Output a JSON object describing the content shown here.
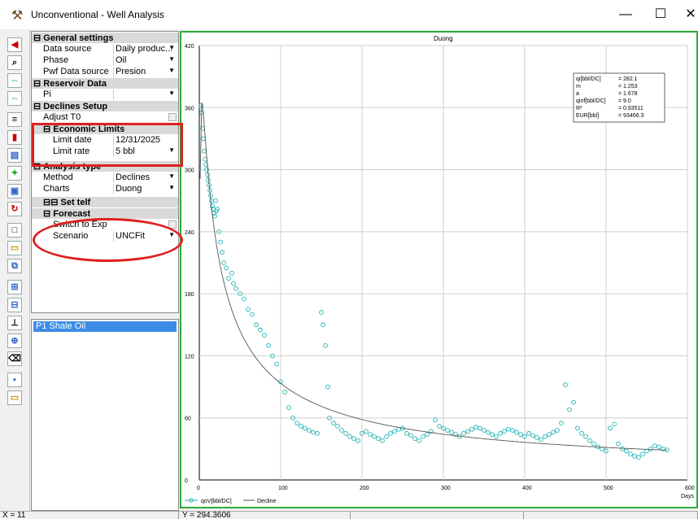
{
  "window": {
    "title": "Unconventional - Well Analysis",
    "minimize": "—",
    "maximize": "☐",
    "close": "✕"
  },
  "grid": {
    "general_header": "General settings",
    "data_source_label": "Data source",
    "data_source_value": "Daily produc...",
    "phase_label": "Phase",
    "phase_value": "Oil",
    "pwf_label": "Pwf Data source",
    "pwf_value": "Presion",
    "reservoir_header": "Reservoir Data",
    "pi_label": "Pi",
    "declines_header": "Declines Setup",
    "adjust_label": "Adjust T0",
    "economic_header": "Economic Limits",
    "limit_date_label": "Limit date",
    "limit_date_value": "12/31/2025",
    "limit_rate_label": "Limit rate",
    "limit_rate_value": "5 bbl",
    "analysis_header": "Analysis type",
    "method_label": "Method",
    "method_value": "Declines",
    "charts_label": "Charts",
    "charts_value": "Duong",
    "settelf_header": "Set telf",
    "forecast_header": "Forecast",
    "switch_label": "Switch to Exp",
    "scenario_label": "Scenario",
    "scenario_value": "UNCFit"
  },
  "wells": [
    "P1 Shale Oil"
  ],
  "status": {
    "x": "X = 11",
    "y": "Y = 294.3606"
  },
  "chart_data": {
    "type": "scatter",
    "title": "Duong",
    "xlim": [
      0,
      600
    ],
    "ylim": [
      0,
      420
    ],
    "xticks": [
      0,
      100,
      200,
      300,
      400,
      500,
      600
    ],
    "yticks": [
      0,
      60,
      120,
      180,
      240,
      300,
      360,
      420
    ],
    "xlabel": "Days",
    "grid": true,
    "legend_position": "bottom-left",
    "legend": [
      "qoV[bbl/DC]",
      "Decline"
    ],
    "stats": [
      {
        "label": "qi[bbl/DC]",
        "value": "= 282.1"
      },
      {
        "label": "m",
        "value": "= 1.253"
      },
      {
        "label": "a",
        "value": "= 1.678"
      },
      {
        "label": "qinf[bbl/DC]",
        "value": "= 9.0"
      },
      {
        "label": "R²",
        "value": "= 0.93511"
      },
      {
        "label": "EUR[bbl]",
        "value": "= 93466.3"
      }
    ],
    "series": [
      {
        "name": "qoV[bbl/DC]",
        "color": "#1fb3b3",
        "points": [
          [
            2,
            362
          ],
          [
            3,
            355
          ],
          [
            4,
            340
          ],
          [
            5,
            330
          ],
          [
            6,
            318
          ],
          [
            7,
            310
          ],
          [
            8,
            305
          ],
          [
            9,
            300
          ],
          [
            10,
            295
          ],
          [
            11,
            290
          ],
          [
            12,
            285
          ],
          [
            13,
            280
          ],
          [
            14,
            275
          ],
          [
            15,
            270
          ],
          [
            16,
            265
          ],
          [
            17,
            262
          ],
          [
            18,
            258
          ],
          [
            19,
            255
          ],
          [
            20,
            270
          ],
          [
            21,
            260
          ],
          [
            22,
            262
          ],
          [
            24,
            240
          ],
          [
            26,
            230
          ],
          [
            28,
            220
          ],
          [
            30,
            210
          ],
          [
            33,
            205
          ],
          [
            36,
            195
          ],
          [
            40,
            200
          ],
          [
            42,
            190
          ],
          [
            45,
            185
          ],
          [
            50,
            180
          ],
          [
            55,
            175
          ],
          [
            60,
            165
          ],
          [
            65,
            160
          ],
          [
            70,
            150
          ],
          [
            75,
            145
          ],
          [
            80,
            140
          ],
          [
            85,
            130
          ],
          [
            90,
            120
          ],
          [
            95,
            112
          ],
          [
            100,
            95
          ],
          [
            105,
            85
          ],
          [
            110,
            70
          ],
          [
            115,
            60
          ],
          [
            120,
            55
          ],
          [
            125,
            52
          ],
          [
            130,
            50
          ],
          [
            135,
            48
          ],
          [
            140,
            46
          ],
          [
            145,
            45
          ],
          [
            150,
            162
          ],
          [
            152,
            150
          ],
          [
            155,
            130
          ],
          [
            158,
            90
          ],
          [
            160,
            60
          ],
          [
            165,
            55
          ],
          [
            170,
            52
          ],
          [
            175,
            48
          ],
          [
            180,
            45
          ],
          [
            185,
            42
          ],
          [
            190,
            40
          ],
          [
            195,
            38
          ],
          [
            200,
            45
          ],
          [
            205,
            47
          ],
          [
            210,
            44
          ],
          [
            215,
            42
          ],
          [
            220,
            40
          ],
          [
            225,
            38
          ],
          [
            230,
            42
          ],
          [
            235,
            45
          ],
          [
            240,
            47
          ],
          [
            245,
            49
          ],
          [
            250,
            50
          ],
          [
            255,
            45
          ],
          [
            260,
            43
          ],
          [
            265,
            40
          ],
          [
            270,
            38
          ],
          [
            275,
            42
          ],
          [
            280,
            44
          ],
          [
            285,
            47
          ],
          [
            290,
            58
          ],
          [
            295,
            52
          ],
          [
            300,
            50
          ],
          [
            305,
            48
          ],
          [
            310,
            46
          ],
          [
            315,
            44
          ],
          [
            320,
            42
          ],
          [
            325,
            45
          ],
          [
            330,
            47
          ],
          [
            335,
            49
          ],
          [
            340,
            51
          ],
          [
            345,
            50
          ],
          [
            350,
            48
          ],
          [
            355,
            46
          ],
          [
            360,
            44
          ],
          [
            365,
            42
          ],
          [
            370,
            45
          ],
          [
            375,
            47
          ],
          [
            380,
            49
          ],
          [
            385,
            48
          ],
          [
            390,
            46
          ],
          [
            395,
            44
          ],
          [
            400,
            42
          ],
          [
            405,
            45
          ],
          [
            410,
            43
          ],
          [
            415,
            41
          ],
          [
            420,
            39
          ],
          [
            425,
            42
          ],
          [
            430,
            44
          ],
          [
            435,
            46
          ],
          [
            440,
            48
          ],
          [
            445,
            55
          ],
          [
            450,
            92
          ],
          [
            455,
            68
          ],
          [
            460,
            75
          ],
          [
            465,
            50
          ],
          [
            470,
            45
          ],
          [
            475,
            42
          ],
          [
            480,
            38
          ],
          [
            485,
            35
          ],
          [
            490,
            32
          ],
          [
            495,
            30
          ],
          [
            500,
            28
          ],
          [
            505,
            50
          ],
          [
            510,
            54
          ],
          [
            515,
            35
          ],
          [
            520,
            30
          ],
          [
            525,
            28
          ],
          [
            530,
            25
          ],
          [
            535,
            23
          ],
          [
            540,
            22
          ],
          [
            545,
            25
          ],
          [
            550,
            28
          ],
          [
            555,
            30
          ],
          [
            560,
            33
          ],
          [
            565,
            32
          ],
          [
            570,
            30
          ],
          [
            575,
            29
          ]
        ]
      },
      {
        "name": "Decline",
        "color": "#555555"
      }
    ]
  }
}
